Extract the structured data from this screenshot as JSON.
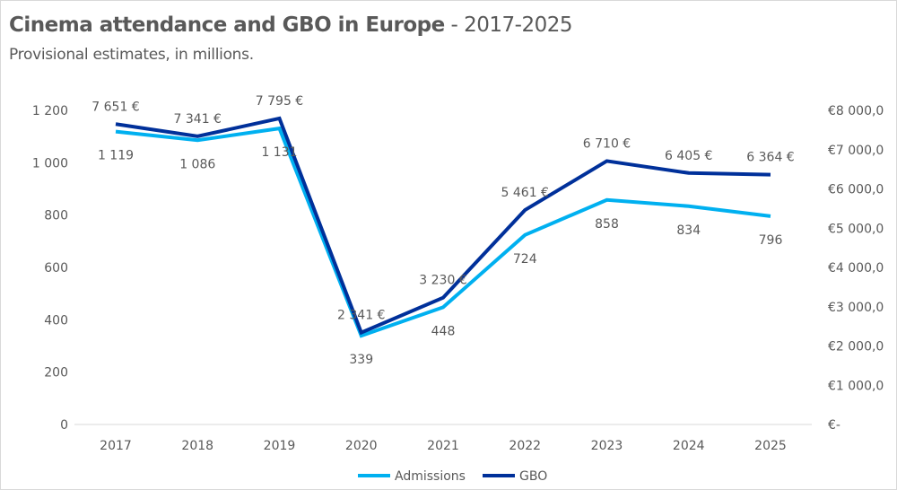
{
  "chart_data": {
    "type": "line",
    "title_bold": "Cinema attendance and GBO in Europe",
    "title_rest": " - 2017-2025",
    "subtitle": "Provisional estimates, in millions.",
    "categories": [
      "2017",
      "2018",
      "2019",
      "2020",
      "2021",
      "2022",
      "2023",
      "2024",
      "2025"
    ],
    "series": [
      {
        "name": "Admissions",
        "axis": "left",
        "color": "#00B0F0",
        "values": [
          1119,
          1086,
          1131,
          339,
          448,
          724,
          858,
          834,
          796
        ],
        "labels": [
          "1 119",
          "1 086",
          "1 131",
          "339",
          "448",
          "724",
          "858",
          "834",
          "796"
        ]
      },
      {
        "name": "GBO",
        "axis": "right",
        "color": "#00309A",
        "values": [
          7651,
          7341,
          7795,
          2341,
          3230,
          5461,
          6710,
          6405,
          6364
        ],
        "labels": [
          "7 651 €",
          "7 341 €",
          "7 795 €",
          "2 341 €",
          "3 230 €",
          "5 461 €",
          "6 710 €",
          "6 405 €",
          "6 364 €"
        ]
      }
    ],
    "y_left": {
      "lim": [
        0,
        1200
      ],
      "ticks": [
        0,
        200,
        400,
        600,
        800,
        1000,
        1200
      ],
      "tick_labels": [
        "0",
        "200",
        "400",
        "600",
        "800",
        "1 000",
        "1 200"
      ]
    },
    "y_right": {
      "lim": [
        0,
        8000
      ],
      "ticks": [
        0,
        1000,
        2000,
        3000,
        4000,
        5000,
        6000,
        7000,
        8000
      ],
      "tick_labels": [
        "€-",
        "€1 000,0",
        "€2 000,0",
        "€3 000,0",
        "€4 000,0",
        "€5 000,0",
        "€6 000,0",
        "€7 000,0",
        "€8 000,0"
      ]
    },
    "grid": false,
    "legend": "bottom"
  }
}
